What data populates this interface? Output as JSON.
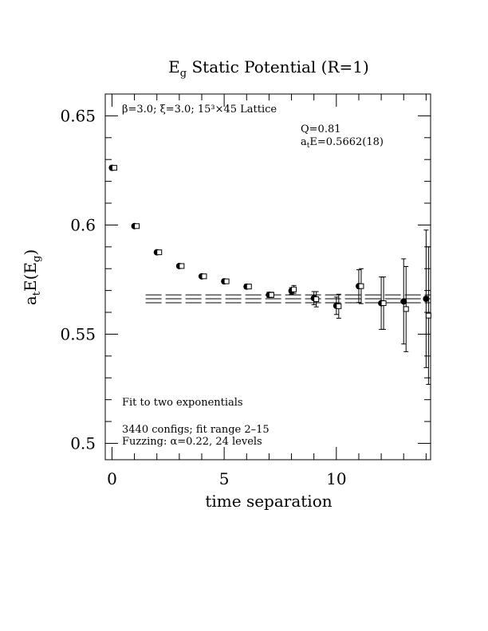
{
  "chart_data": {
    "type": "scatter",
    "title_main": "E",
    "title_sub": "g",
    "title_rest": " Static Potential (R=1)",
    "xlabel": "time separation",
    "ylabel_a": "a",
    "ylabel_t": "t",
    "ylabel_E": "E(E",
    "ylabel_g": "g",
    "ylabel_close": ")",
    "xlim": [
      -0.3,
      14.2
    ],
    "ylim": [
      0.4925,
      0.66
    ],
    "x_ticks": [
      {
        "value": 0,
        "label": "0"
      },
      {
        "value": 5,
        "label": "5"
      },
      {
        "value": 10,
        "label": "10"
      }
    ],
    "y_ticks": [
      {
        "value": 0.5,
        "label": "0.5"
      },
      {
        "value": 0.55,
        "label": "0.55"
      },
      {
        "value": 0.6,
        "label": "0.6"
      },
      {
        "value": 0.65,
        "label": "0.65"
      }
    ],
    "header_text": "β=3.0; ξ=3.0; 15³×45 Lattice",
    "fit_q": "Q=0.81",
    "fit_energy_prefix": "a",
    "fit_energy_sub": "t",
    "fit_energy_rest": "E=0.5662(18)",
    "notes": [
      "Fit to two exponentials",
      "3440 configs; fit range 2–15",
      "Fuzzing: α=0.22, 24 levels"
    ],
    "fit": {
      "value": 0.5662,
      "error": 0.0018,
      "t_start": 1.5,
      "t_end": 14.2
    },
    "series": [
      {
        "marker": "filled-circle",
        "points": [
          {
            "x": 0,
            "y": 0.6262,
            "err": 0.0008
          },
          {
            "x": 1,
            "y": 0.5995,
            "err": 0.0008
          },
          {
            "x": 2,
            "y": 0.5875,
            "err": 0.0008
          },
          {
            "x": 3,
            "y": 0.5812,
            "err": 0.0008
          },
          {
            "x": 4,
            "y": 0.5765,
            "err": 0.0008
          },
          {
            "x": 5,
            "y": 0.5742,
            "err": 0.0008
          },
          {
            "x": 6,
            "y": 0.5718,
            "err": 0.001
          },
          {
            "x": 7,
            "y": 0.568,
            "err": 0.0012
          },
          {
            "x": 8,
            "y": 0.5698,
            "err": 0.0015
          },
          {
            "x": 9,
            "y": 0.5665,
            "err": 0.003
          },
          {
            "x": 10,
            "y": 0.563,
            "err": 0.004
          },
          {
            "x": 11,
            "y": 0.572,
            "err": 0.0075
          },
          {
            "x": 12,
            "y": 0.5642,
            "err": 0.012
          },
          {
            "x": 13,
            "y": 0.565,
            "err": 0.0195
          },
          {
            "x": 14,
            "y": 0.5662,
            "err": 0.0315
          }
        ]
      },
      {
        "marker": "open-square",
        "points": [
          {
            "x": 0,
            "y": 0.6262,
            "err": 0.0008
          },
          {
            "x": 1,
            "y": 0.5995,
            "err": 0.0008
          },
          {
            "x": 2,
            "y": 0.5875,
            "err": 0.0008
          },
          {
            "x": 3,
            "y": 0.5812,
            "err": 0.0008
          },
          {
            "x": 4,
            "y": 0.5765,
            "err": 0.0008
          },
          {
            "x": 5,
            "y": 0.5742,
            "err": 0.0008
          },
          {
            "x": 6,
            "y": 0.5718,
            "err": 0.001
          },
          {
            "x": 7,
            "y": 0.568,
            "err": 0.0012
          },
          {
            "x": 8,
            "y": 0.5705,
            "err": 0.0018
          },
          {
            "x": 9,
            "y": 0.566,
            "err": 0.0035
          },
          {
            "x": 10,
            "y": 0.5628,
            "err": 0.0055
          },
          {
            "x": 11,
            "y": 0.572,
            "err": 0.008
          },
          {
            "x": 12,
            "y": 0.5642,
            "err": 0.012
          },
          {
            "x": 13,
            "y": 0.5615,
            "err": 0.0195
          },
          {
            "x": 14,
            "y": 0.5585,
            "err": 0.0315
          }
        ]
      }
    ]
  }
}
